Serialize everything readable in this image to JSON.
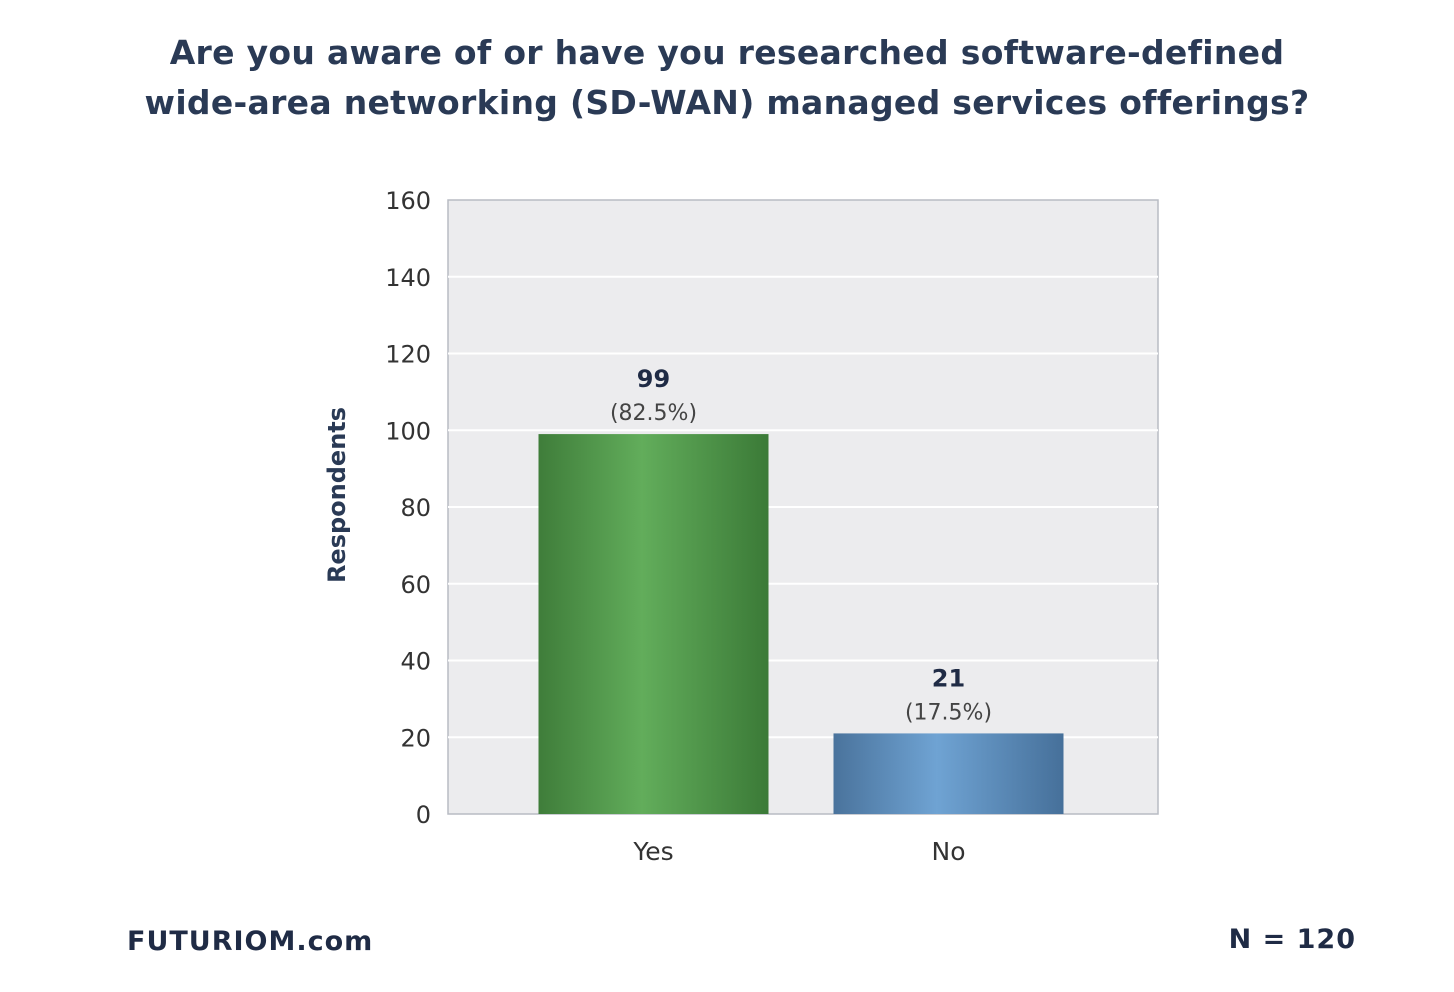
{
  "chart_data": {
    "type": "bar",
    "title_lines": [
      "Are you aware of or have you researched software-defined",
      "wide-area networking (SD-WAN) managed services offerings?"
    ],
    "ylabel": "Respondents",
    "xlabel": "",
    "categories": [
      "Yes",
      "No"
    ],
    "values": [
      99,
      21
    ],
    "value_labels": [
      "99",
      "21"
    ],
    "percent_labels": [
      "(82.5%)",
      "(17.5%)"
    ],
    "ylim": [
      0,
      160
    ],
    "yticks": [
      0,
      20,
      40,
      60,
      80,
      100,
      120,
      140,
      160
    ],
    "grid": true,
    "colors": {
      "Yes": "#4e9a48",
      "No": "#5a8dbd",
      "plot_bg": "#ececee",
      "axis_text": "#333333"
    }
  },
  "footer": {
    "brand": "FUTURIOM.com",
    "n_label": "N = 120"
  }
}
